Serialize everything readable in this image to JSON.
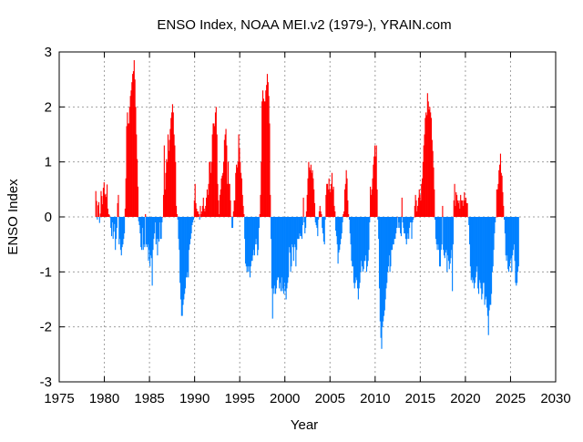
{
  "chart_data": {
    "type": "bar",
    "title": "ENSO Index, NOAA MEI.v2 (1979-), YRAIN.com",
    "xlabel": "Year",
    "ylabel": "ENSO Index",
    "xlim": [
      1975,
      2030
    ],
    "ylim": [
      -3,
      3
    ],
    "xticks": [
      "1975",
      "1980",
      "1985",
      "1990",
      "1995",
      "2000",
      "2005",
      "2010",
      "2015",
      "2020",
      "2025",
      "2030"
    ],
    "yticks": [
      "-3",
      "-2",
      "-1",
      "0",
      "1",
      "2",
      "3"
    ],
    "grid": true,
    "legend": "none",
    "colors": {
      "positive": "#ff0000",
      "negative": "#0080ff",
      "grid": "#a0a0a0"
    },
    "start_year": 1979,
    "frequency": "monthly",
    "values_by_year": {
      "1979": [
        0.47,
        0.29,
        -0.05,
        0.21,
        0.27,
        -0.11,
        0.06,
        0.47,
        0.38,
        0.23,
        0.53,
        0.63
      ],
      "1980": [
        0.4,
        0.42,
        0.36,
        0.59,
        0.15,
        0.05,
        0.04,
        -0.01,
        -0.2,
        -0.35,
        -0.1,
        -0.4
      ],
      "1981": [
        -0.27,
        -0.13,
        -0.6,
        -0.4,
        -0.2,
        0.25,
        0.4,
        -0.5,
        -0.4,
        -0.6,
        -0.7,
        -0.55
      ],
      "1982": [
        -0.5,
        -0.4,
        -0.3,
        0.15,
        0.7,
        1.65,
        1.9,
        1.7,
        1.7,
        2.0,
        2.2,
        2.3
      ],
      "1983": [
        2.45,
        2.6,
        2.65,
        2.85,
        2.5,
        2.0,
        1.5,
        1.05,
        0.55,
        -0.08,
        -0.15,
        -0.3
      ],
      "1984": [
        -0.55,
        -0.6,
        -0.2,
        -0.6,
        -0.5,
        -0.55,
        0.05,
        -0.5,
        -0.55,
        -0.5,
        -0.8,
        -0.6
      ],
      "1985": [
        -0.9,
        -0.7,
        -0.75,
        -1.25,
        -0.6,
        -0.4,
        -0.3,
        -0.1,
        -0.5,
        -0.4,
        -0.7,
        -0.4
      ],
      "1986": [
        -0.45,
        -0.1,
        -0.4,
        -0.4,
        -0.1,
        0.0,
        0.4,
        1.3,
        0.5,
        0.8,
        1.05,
        1.0
      ],
      "1987": [
        1.5,
        1.2,
        1.4,
        1.6,
        1.8,
        1.9,
        2.05,
        1.9,
        1.5,
        1.3,
        1.0,
        0.2
      ],
      "1988": [
        0.05,
        -0.05,
        -0.4,
        -0.6,
        -1.2,
        -1.5,
        -1.8,
        -1.8,
        -1.6,
        -1.5,
        -1.4,
        -1.3
      ],
      "1989": [
        -1.1,
        -1.1,
        -1.0,
        -1.1,
        -0.6,
        -0.5,
        -0.4,
        -0.3,
        -0.15,
        -0.1,
        -0.05,
        0.3
      ],
      "1990": [
        0.6,
        0.25,
        0.15,
        0.1,
        0.1,
        0.05,
        -0.05,
        0.2,
        0.05,
        0.1,
        0.2,
        0.35
      ],
      "1991": [
        0.15,
        0.1,
        0.2,
        0.35,
        0.5,
        0.4,
        0.6,
        1.0,
        1.0,
        0.8,
        1.0,
        1.5
      ],
      "1992": [
        1.7,
        1.7,
        1.65,
        1.9,
        2.0,
        1.5,
        0.6,
        0.3,
        0.05,
        0.4,
        0.5,
        0.7
      ],
      "1993": [
        0.75,
        0.8,
        1.0,
        1.4,
        1.5,
        1.6,
        1.3,
        0.6,
        1.0,
        0.6,
        0.6,
        0.3
      ],
      "1994": [
        0.01,
        -0.2,
        -0.2,
        0.1,
        0.3,
        0.3,
        0.8,
        0.95,
        0.9,
        1.0,
        1.5,
        1.25
      ],
      "1995": [
        1.0,
        0.8,
        0.7,
        0.4,
        0.2,
        0.05,
        -0.4,
        -0.85,
        -0.9,
        -1.0,
        -0.9,
        -1.0
      ],
      "1996": [
        -0.9,
        -1.1,
        -0.9,
        -0.8,
        -0.8,
        -0.7,
        -0.6,
        -0.7,
        -0.5,
        -0.4,
        -0.5,
        -0.7
      ],
      "1997": [
        -0.6,
        -0.2,
        0.05,
        0.4,
        1.0,
        2.1,
        2.3,
        2.15,
        2.1,
        2.1,
        2.3,
        2.4
      ],
      "1998": [
        2.6,
        2.45,
        2.2,
        1.7,
        0.4,
        -0.4,
        -1.3,
        -1.85,
        -1.3,
        -1.4,
        -1.25,
        -1.4
      ],
      "1999": [
        -1.3,
        -1.15,
        -1.1,
        -1.1,
        -1.3,
        -1.2,
        -1.35,
        -1.1,
        -1.35,
        -1.3,
        -1.4,
        -1.2
      ],
      "2000": [
        -1.35,
        -1.5,
        -1.3,
        -1.2,
        -1.1,
        -0.55,
        -0.65,
        -1.0,
        -0.9,
        -0.5,
        -0.55,
        -0.8
      ],
      "2001": [
        -0.5,
        -0.55,
        -0.9,
        -0.6,
        -0.4,
        -0.4,
        -0.4,
        -0.3,
        -0.35,
        -0.35,
        -0.4,
        -0.15
      ],
      "2002": [
        0.35,
        -0.1,
        -0.3,
        -0.2,
        0.1,
        0.4,
        0.7,
        1.0,
        0.9,
        0.85,
        0.95,
        0.8
      ],
      "2003": [
        0.85,
        0.7,
        0.5,
        0.25,
        -0.1,
        -0.15,
        -0.2,
        -0.35,
        -0.05,
        0.1,
        0.2,
        0.1
      ],
      "2004": [
        0.05,
        -0.2,
        -0.3,
        -0.45,
        -0.5,
        -0.05,
        0.4,
        0.6,
        0.6,
        0.5,
        0.7,
        0.5
      ],
      "2005": [
        0.45,
        0.6,
        0.8,
        0.5,
        0.55,
        0.2,
        0.1,
        -0.25,
        -0.35,
        -0.5,
        -0.85,
        -0.65
      ],
      "2006": [
        -0.6,
        -0.5,
        -0.4,
        -0.3,
        -0.1,
        0.05,
        0.1,
        0.5,
        0.6,
        0.85,
        0.7,
        0.3
      ],
      "2007": [
        0.05,
        -0.05,
        -0.3,
        -0.5,
        -0.8,
        -0.9,
        -0.9,
        -1.2,
        -1.3,
        -1.2,
        -1.1,
        -1.15
      ],
      "2008": [
        -1.3,
        -1.5,
        -1.3,
        -1.2,
        -1.0,
        -0.8,
        -0.9,
        -1.0,
        -0.95,
        -0.8,
        -0.8,
        -0.7
      ],
      "2009": [
        -1.0,
        -0.9,
        -0.8,
        -0.6,
        -0.1,
        0.55,
        0.4,
        0.5,
        0.7,
        0.95,
        1.1,
        1.3
      ],
      "2010": [
        1.1,
        1.3,
        0.5,
        -0.05,
        -0.4,
        -1.3,
        -1.9,
        -2.2,
        -2.4,
        -2.0,
        -1.9,
        -1.8
      ],
      "2011": [
        -1.7,
        -1.5,
        -1.3,
        -1.2,
        -1.0,
        -0.9,
        -0.7,
        -1.0,
        -0.9,
        -0.6,
        -0.6,
        -0.5
      ],
      "2012": [
        -0.5,
        -0.4,
        -0.4,
        -0.3,
        -0.2,
        0.0,
        -0.2,
        -0.1,
        -0.2,
        -0.3,
        -0.35,
        0.35
      ],
      "2013": [
        -0.1,
        -0.2,
        -0.3,
        -0.3,
        -0.4,
        -0.5,
        -0.4,
        -0.3,
        -0.4,
        -0.2,
        -0.1,
        -0.1
      ],
      "2014": [
        -0.4,
        -0.1,
        -0.05,
        0.0,
        0.2,
        0.4,
        0.3,
        0.1,
        0.2,
        0.35,
        0.5,
        0.4
      ],
      "2015": [
        0.3,
        0.6,
        0.7,
        1.0,
        1.3,
        1.5,
        1.8,
        1.9,
        1.85,
        2.25,
        2.1,
        1.95
      ],
      "2016": [
        2.0,
        1.9,
        1.8,
        1.4,
        1.2,
        0.9,
        0.5,
        -0.05,
        -0.4,
        -0.5,
        -0.6,
        -0.5
      ],
      "2017": [
        -0.6,
        -0.9,
        -0.9,
        -0.6,
        -0.5,
        0.2,
        -0.6,
        -0.7,
        -0.75,
        -0.65,
        -0.6,
        -1.0
      ],
      "2018": [
        -0.7,
        -0.8,
        -0.95,
        -0.85,
        -0.75,
        -0.6,
        -1.35,
        -0.5,
        0.3,
        0.6,
        0.2,
        0.45
      ],
      "2019": [
        0.4,
        0.3,
        0.25,
        0.3,
        0.15,
        0.4,
        0.3,
        0.3,
        0.2,
        0.3,
        0.45,
        0.3
      ],
      "2020": [
        0.35,
        0.25,
        0.25,
        0.0,
        -0.15,
        -0.5,
        -0.9,
        -1.15,
        -1.1,
        -1.2,
        -1.15,
        -1.3
      ],
      "2021": [
        -1.2,
        -1.1,
        -1.0,
        -0.9,
        -1.3,
        -1.4,
        -1.15,
        -1.2,
        -1.3,
        -1.5,
        -1.4,
        -1.2
      ],
      "2022": [
        -1.2,
        -1.6,
        -1.5,
        -1.45,
        -1.65,
        -1.8,
        -2.15,
        -1.7,
        -1.6,
        -1.6,
        -1.4,
        -1.0
      ],
      "2023": [
        -0.9,
        -0.6,
        -0.3,
        -0.1,
        0.0,
        0.5,
        0.5,
        0.6,
        0.85,
        0.95,
        1.15,
        0.8
      ],
      "2024": [
        0.75,
        0.45,
        0.2,
        -0.05,
        -0.3,
        -0.7,
        -0.8,
        -0.7,
        -0.95,
        -1.0,
        -0.9,
        -0.8
      ],
      "2025": [
        -0.75,
        -1.0,
        -0.7,
        -0.6,
        -0.5,
        -0.8,
        -1.2,
        -1.25,
        -1.2,
        -1.0,
        -0.9
      ]
    }
  }
}
